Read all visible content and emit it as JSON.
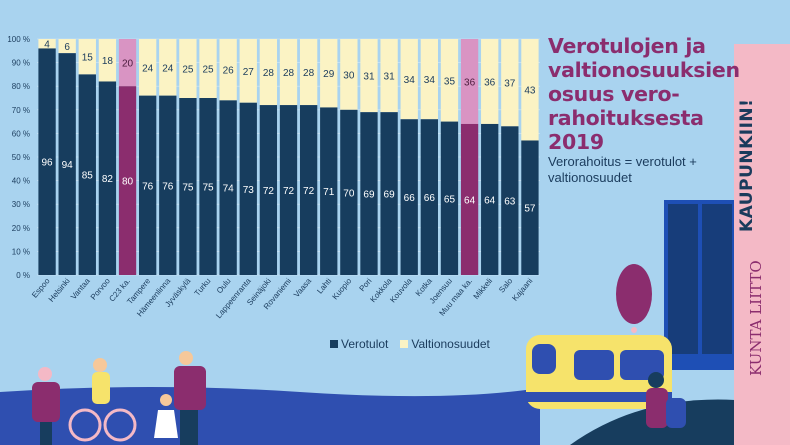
{
  "title": "Verotulojen ja valtionosuuksien osuus vero-rahoituksesta 2019",
  "subtitle": "Verorahoitus = verotulot + valtionosuudet",
  "legend": {
    "verotulot": "Verotulot",
    "valtionosuudet": "Valtionosuudet"
  },
  "slogan": "KAUPUNKIIN!",
  "logo": "KUNTA LIITTO",
  "colors": {
    "verotulot": "#173d5e",
    "valtionosuudet": "#fbf3c4",
    "highlight_verotulot": "#8b2d6e",
    "highlight_valtionosuudet": "#d994c3",
    "title": "#8b2d6e",
    "background": "#a9d3ef"
  },
  "chart_data": {
    "type": "bar",
    "stacked": true,
    "categories": [
      "Espoo",
      "Helsinki",
      "Vantaa",
      "Porvoo",
      "C23 ka.",
      "Tampere",
      "Hämeenlinna",
      "Jyväskylä",
      "Turku",
      "Oulu",
      "Lappeenranta",
      "Seinäjoki",
      "Rovaniemi",
      "Vaasa",
      "Lahti",
      "Kuopio",
      "Pori",
      "Kokkola",
      "Kouvola",
      "Kotka",
      "Joensuu",
      "Muu maa ka.",
      "Mikkeli",
      "Salo",
      "Kajaani"
    ],
    "highlighted": [
      "C23 ka.",
      "Muu maa ka."
    ],
    "series": [
      {
        "name": "Verotulot",
        "values": [
          96,
          94,
          85,
          82,
          80,
          76,
          76,
          75,
          75,
          74,
          73,
          72,
          72,
          72,
          71,
          70,
          69,
          69,
          66,
          66,
          65,
          64,
          64,
          63,
          57
        ]
      },
      {
        "name": "Valtionosuudet",
        "values": [
          4,
          6,
          15,
          18,
          20,
          24,
          24,
          25,
          25,
          26,
          27,
          28,
          28,
          28,
          29,
          30,
          31,
          31,
          34,
          34,
          35,
          36,
          36,
          37,
          43
        ]
      }
    ],
    "yticks": [
      "0 %",
      "10 %",
      "20 %",
      "30 %",
      "40 %",
      "50 %",
      "60 %",
      "70 %",
      "80 %",
      "90 %",
      "100 %"
    ],
    "ylim": [
      0,
      100
    ],
    "xlabel": "",
    "ylabel": "",
    "legend_position": "bottom"
  }
}
